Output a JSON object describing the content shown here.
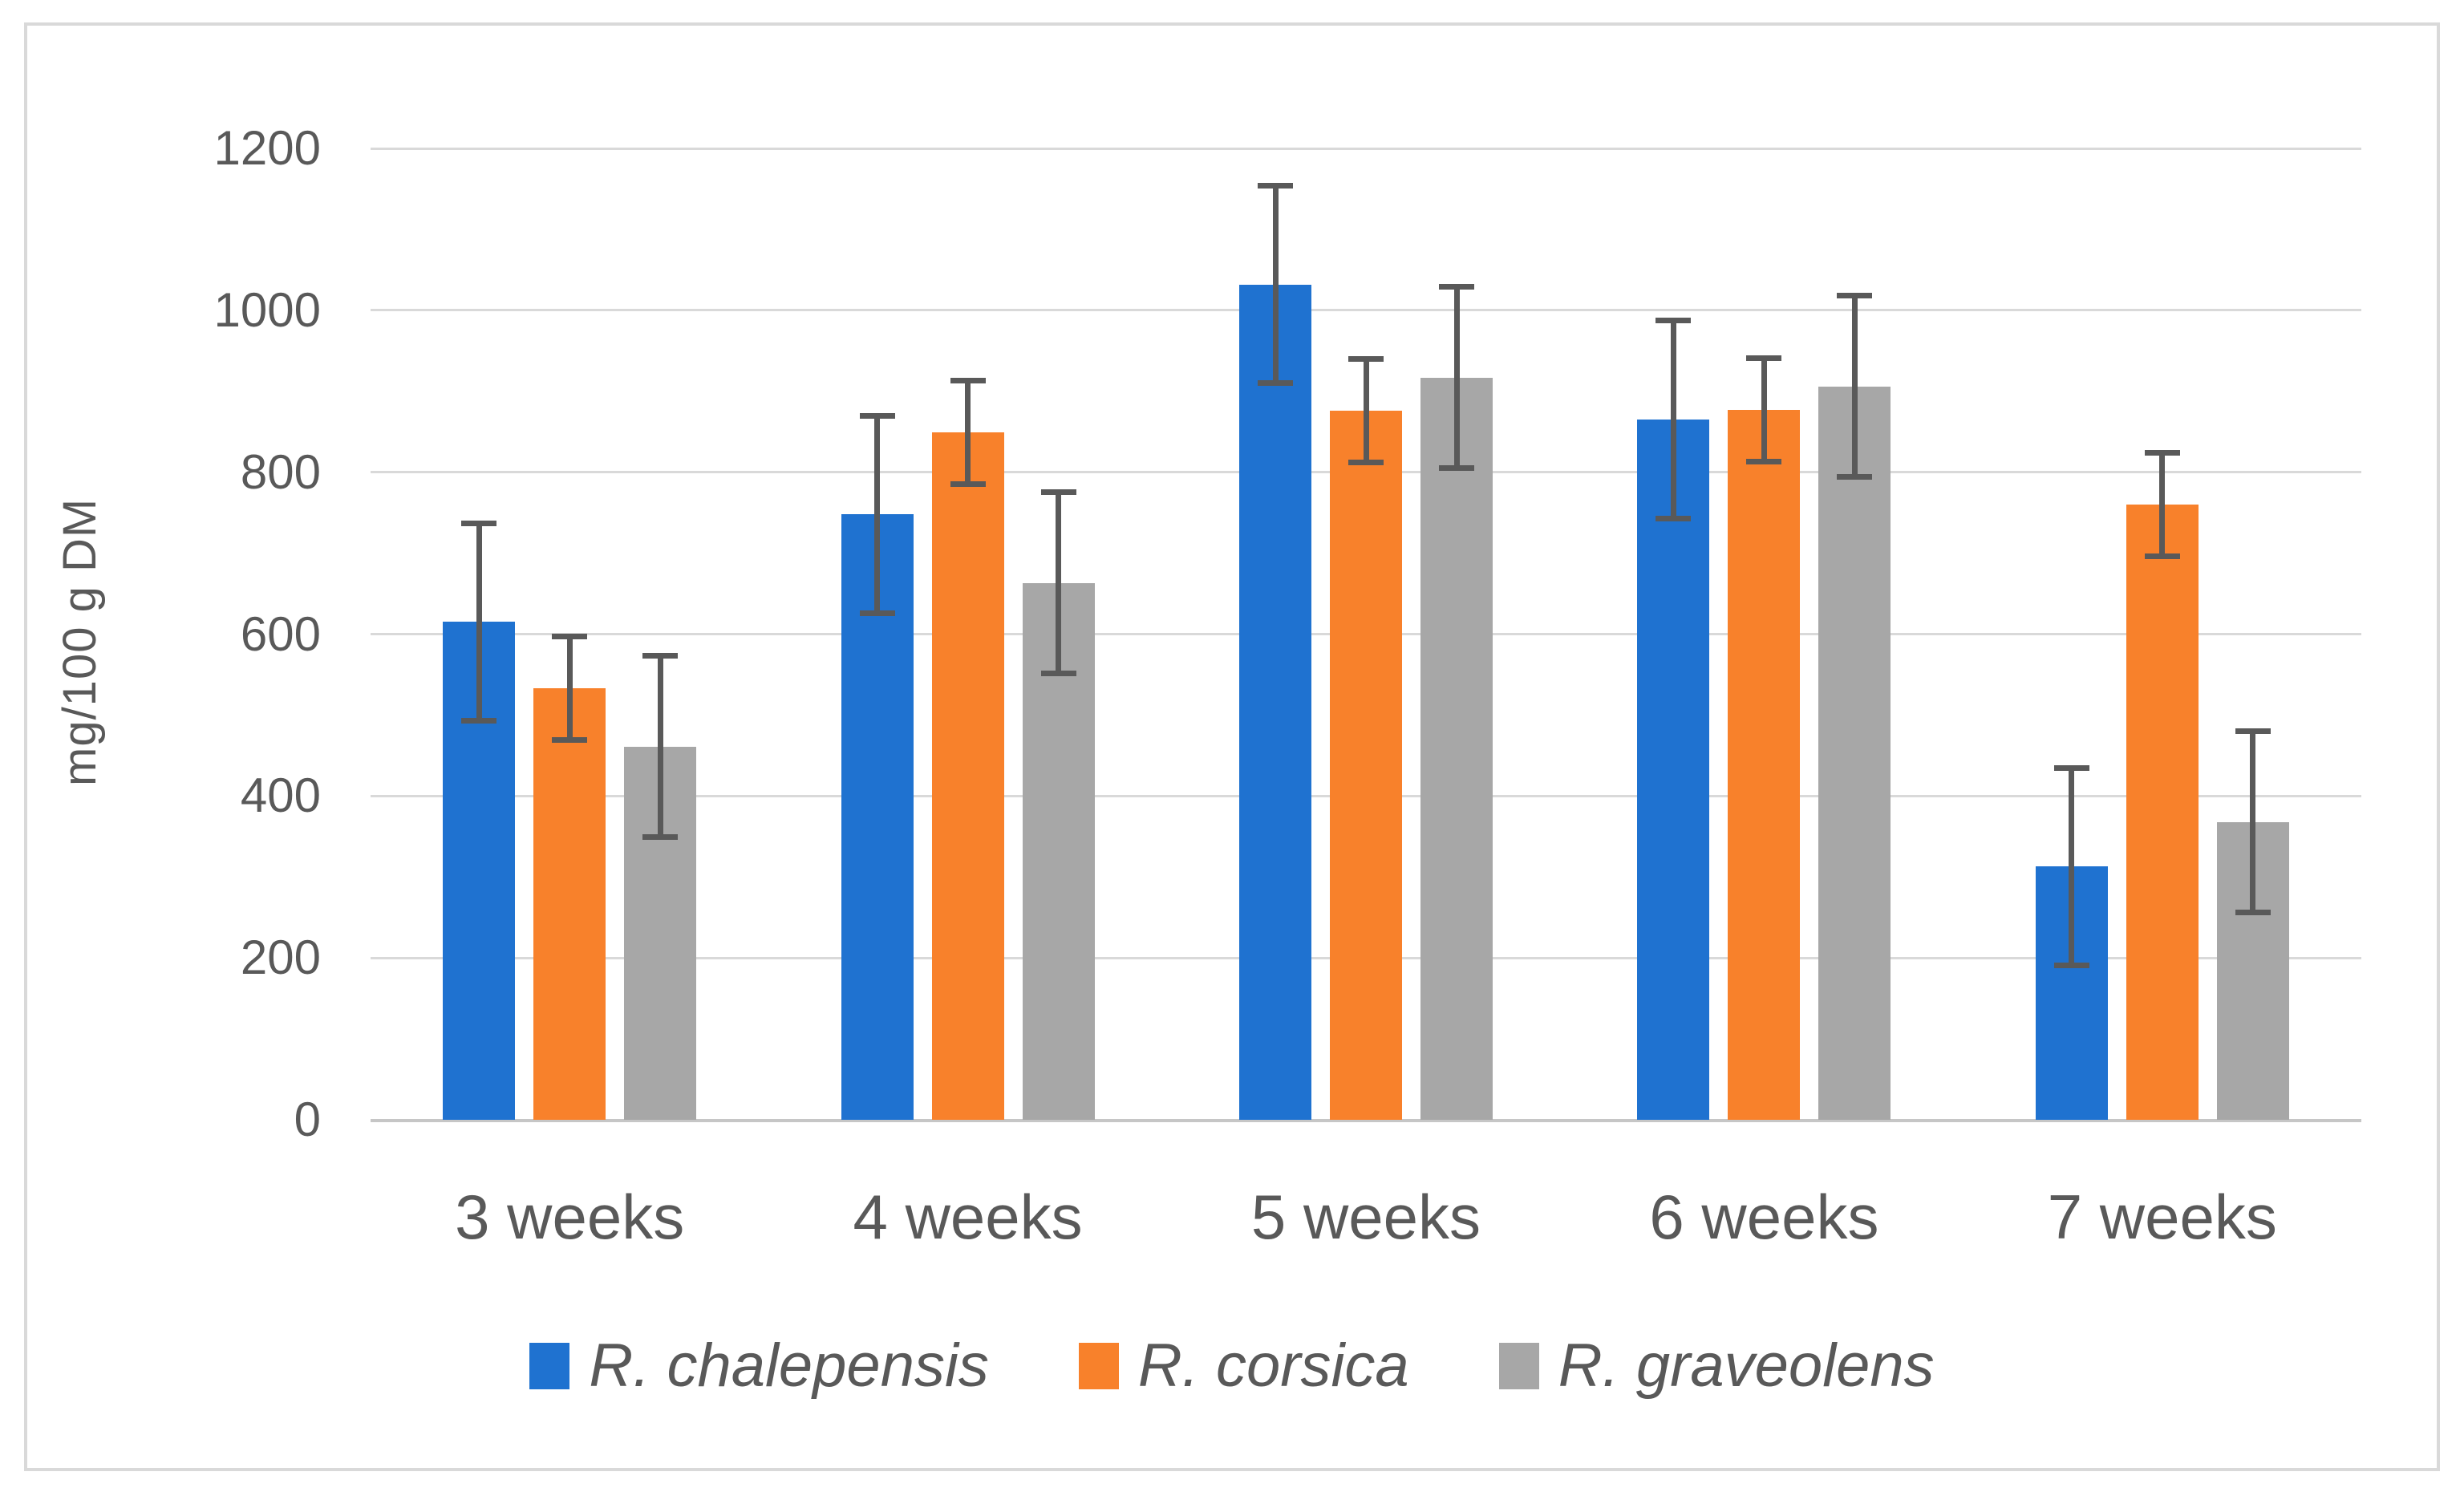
{
  "chart_data": {
    "type": "bar",
    "title": "",
    "ylabel": "mg/100 g DM",
    "xlabel": "",
    "categories": [
      "3 weeks",
      "4 weeks",
      "5 weeks",
      "6 weeks",
      "7 weeks"
    ],
    "series": [
      {
        "name": "R. chalepensis",
        "color": "#1F72D0",
        "values": [
          615,
          748,
          1032,
          865,
          313
        ],
        "error": [
          122,
          122,
          122,
          122,
          122
        ]
      },
      {
        "name": "R. corsica",
        "color": "#F8812B",
        "values": [
          533,
          849,
          876,
          877,
          760
        ],
        "error": [
          64,
          64,
          64,
          64,
          64
        ]
      },
      {
        "name": "R. graveolens",
        "color": "#A7A7A7",
        "values": [
          461,
          663,
          917,
          906,
          368
        ],
        "error": [
          112,
          112,
          112,
          112,
          112
        ]
      }
    ],
    "ylim": [
      0,
      1200
    ],
    "yticks": [
      0,
      200,
      400,
      600,
      800,
      1000,
      1200
    ],
    "grid": true,
    "legend_position": "bottom",
    "error_bars": true
  },
  "style_colors": {
    "gridline": "#D9D9D9",
    "axis_baseline": "#C6C6C6",
    "text": "#595959",
    "error_bar": "#595959",
    "frame_border": "#D9D9D9",
    "background": "#FFFFFF"
  }
}
